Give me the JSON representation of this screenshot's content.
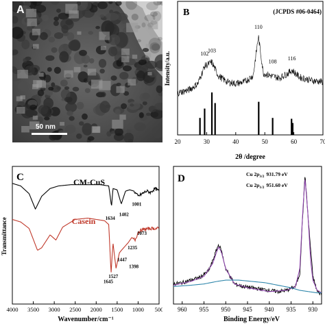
{
  "panel_a": {
    "letter": "A",
    "scale_bar": "50 nm"
  },
  "chart_data": [
    {
      "panel": "B",
      "type": "line",
      "reference": "(JCPDS #06-0464)",
      "xlabel": "2θ /degree",
      "ylabel": "Intensity/a.u.",
      "xlim": [
        20,
        70
      ],
      "xticks": [
        "20",
        "30",
        "40",
        "50",
        "60",
        "70"
      ],
      "grid": false,
      "peak_labels": [
        {
          "label": "102",
          "x": 29.3,
          "y": 0.52
        },
        {
          "label": "103",
          "x": 31.8,
          "y": 0.56
        },
        {
          "label": "110",
          "x": 47.8,
          "y": 0.86
        },
        {
          "label": "108",
          "x": 52.7,
          "y": 0.42
        },
        {
          "label": "116",
          "x": 59.3,
          "y": 0.46
        }
      ],
      "series": [
        {
          "x": [
            20,
            24,
            27,
            29.3,
            31.8,
            34,
            37,
            40,
            43,
            46,
            47.8,
            49.5,
            52,
            55,
            58,
            59.3,
            62,
            66,
            70
          ],
          "y": [
            0.08,
            0.12,
            0.2,
            0.42,
            0.47,
            0.3,
            0.22,
            0.2,
            0.22,
            0.3,
            0.8,
            0.33,
            0.3,
            0.27,
            0.33,
            0.37,
            0.28,
            0.24,
            0.22
          ]
        }
      ],
      "reference_lines": [
        {
          "x": 27.7,
          "h": 0.4
        },
        {
          "x": 29.3,
          "h": 0.62
        },
        {
          "x": 31.8,
          "h": 1.0
        },
        {
          "x": 32.9,
          "h": 0.75
        },
        {
          "x": 47.9,
          "h": 0.78
        },
        {
          "x": 52.7,
          "h": 0.4
        },
        {
          "x": 59.2,
          "h": 0.38
        },
        {
          "x": 59.6,
          "h": 0.28
        }
      ]
    },
    {
      "panel": "C",
      "type": "line",
      "xlabel": "Wavenumber/cm⁻¹",
      "ylabel": "Transmittance",
      "xlim": [
        4000,
        500
      ],
      "xticks": [
        "4000",
        "3500",
        "3000",
        "2500",
        "2000",
        "1500",
        "1000",
        "500"
      ],
      "grid": false,
      "series": [
        {
          "name": "CM-CuS",
          "color": "#000000",
          "x": [
            4000,
            3800,
            3600,
            3450,
            3300,
            3100,
            2900,
            2600,
            2200,
            1900,
            1700,
            1634,
            1600,
            1500,
            1402,
            1300,
            1200,
            1100,
            1001,
            900,
            800,
            700,
            600,
            500
          ],
          "y": [
            0.9,
            0.88,
            0.82,
            0.7,
            0.8,
            0.86,
            0.88,
            0.89,
            0.89,
            0.89,
            0.88,
            0.72,
            0.86,
            0.85,
            0.74,
            0.84,
            0.85,
            0.84,
            0.8,
            0.82,
            0.84,
            0.83,
            0.86,
            0.84
          ]
        },
        {
          "name": "Casein",
          "color": "#c0392b",
          "x": [
            4000,
            3800,
            3600,
            3400,
            3300,
            3100,
            2960,
            2800,
            2500,
            2200,
            2000,
            1800,
            1700,
            1645,
            1600,
            1527,
            1447,
            1398,
            1235,
            1150,
            1073,
            1000,
            900,
            700,
            500
          ],
          "y": [
            0.62,
            0.6,
            0.55,
            0.38,
            0.4,
            0.5,
            0.46,
            0.56,
            0.62,
            0.63,
            0.62,
            0.61,
            0.58,
            0.2,
            0.44,
            0.24,
            0.36,
            0.38,
            0.44,
            0.48,
            0.46,
            0.52,
            0.54,
            0.55,
            0.55
          ]
        }
      ],
      "annotations": [
        {
          "label": "1634",
          "x": 1634
        },
        {
          "label": "1402",
          "x": 1402
        },
        {
          "label": "1001",
          "x": 1001
        },
        {
          "label": "1073",
          "x": 1073
        },
        {
          "label": "1235",
          "x": 1235
        },
        {
          "label": "1447",
          "x": 1447
        },
        {
          "label": "1398",
          "x": 1398
        },
        {
          "label": "1527",
          "x": 1527
        },
        {
          "label": "1645",
          "x": 1645
        }
      ]
    },
    {
      "panel": "D",
      "type": "line",
      "xlabel": "Binding Energy/eV",
      "xlim": [
        962,
        928
      ],
      "xticks": [
        "960",
        "955",
        "950",
        "945",
        "940",
        "935",
        "930"
      ],
      "grid": false,
      "legend_text": [
        {
          "main": "Cu 2p",
          "sub": "3/2",
          "value": "931.79 eV"
        },
        {
          "main": "Cu 2p",
          "sub": "1/2",
          "value": "951.60 eV"
        }
      ],
      "series": [
        {
          "name": "raw",
          "color": "#000000",
          "x": [
            962,
            960,
            958,
            956,
            954,
            953,
            952,
            951.6,
            951,
            950,
            948,
            946,
            944,
            942,
            940,
            938,
            936,
            934,
            933,
            932.5,
            931.8,
            931,
            930,
            929,
            928
          ],
          "y": [
            0.12,
            0.13,
            0.15,
            0.17,
            0.22,
            0.3,
            0.4,
            0.43,
            0.38,
            0.24,
            0.12,
            0.1,
            0.09,
            0.08,
            0.07,
            0.06,
            0.07,
            0.1,
            0.2,
            0.55,
            0.98,
            0.6,
            0.18,
            0.06,
            0.04
          ]
        },
        {
          "name": "fit",
          "color": "#8e44ad",
          "x": [
            962,
            958,
            955,
            953,
            952,
            951.6,
            951,
            950,
            948,
            945,
            940,
            936,
            934,
            933,
            932.3,
            931.8,
            931.2,
            930.5,
            930,
            929,
            928
          ],
          "y": [
            0.11,
            0.14,
            0.18,
            0.28,
            0.38,
            0.41,
            0.37,
            0.24,
            0.12,
            0.09,
            0.06,
            0.07,
            0.1,
            0.24,
            0.7,
            0.95,
            0.7,
            0.3,
            0.15,
            0.07,
            0.05
          ]
        },
        {
          "name": "background",
          "color": "#2e86ab",
          "x": [
            962,
            958,
            955,
            952,
            950,
            947,
            944,
            941,
            938,
            935,
            933,
            931,
            929,
            928
          ],
          "y": [
            0.1,
            0.11,
            0.12,
            0.14,
            0.15,
            0.15,
            0.14,
            0.13,
            0.11,
            0.09,
            0.07,
            0.06,
            0.05,
            0.05
          ]
        }
      ]
    }
  ],
  "labels": {
    "b_letter": "B",
    "c_letter": "C",
    "d_letter": "D",
    "c_series1": "CM-CuS",
    "c_series2": "Casein"
  }
}
